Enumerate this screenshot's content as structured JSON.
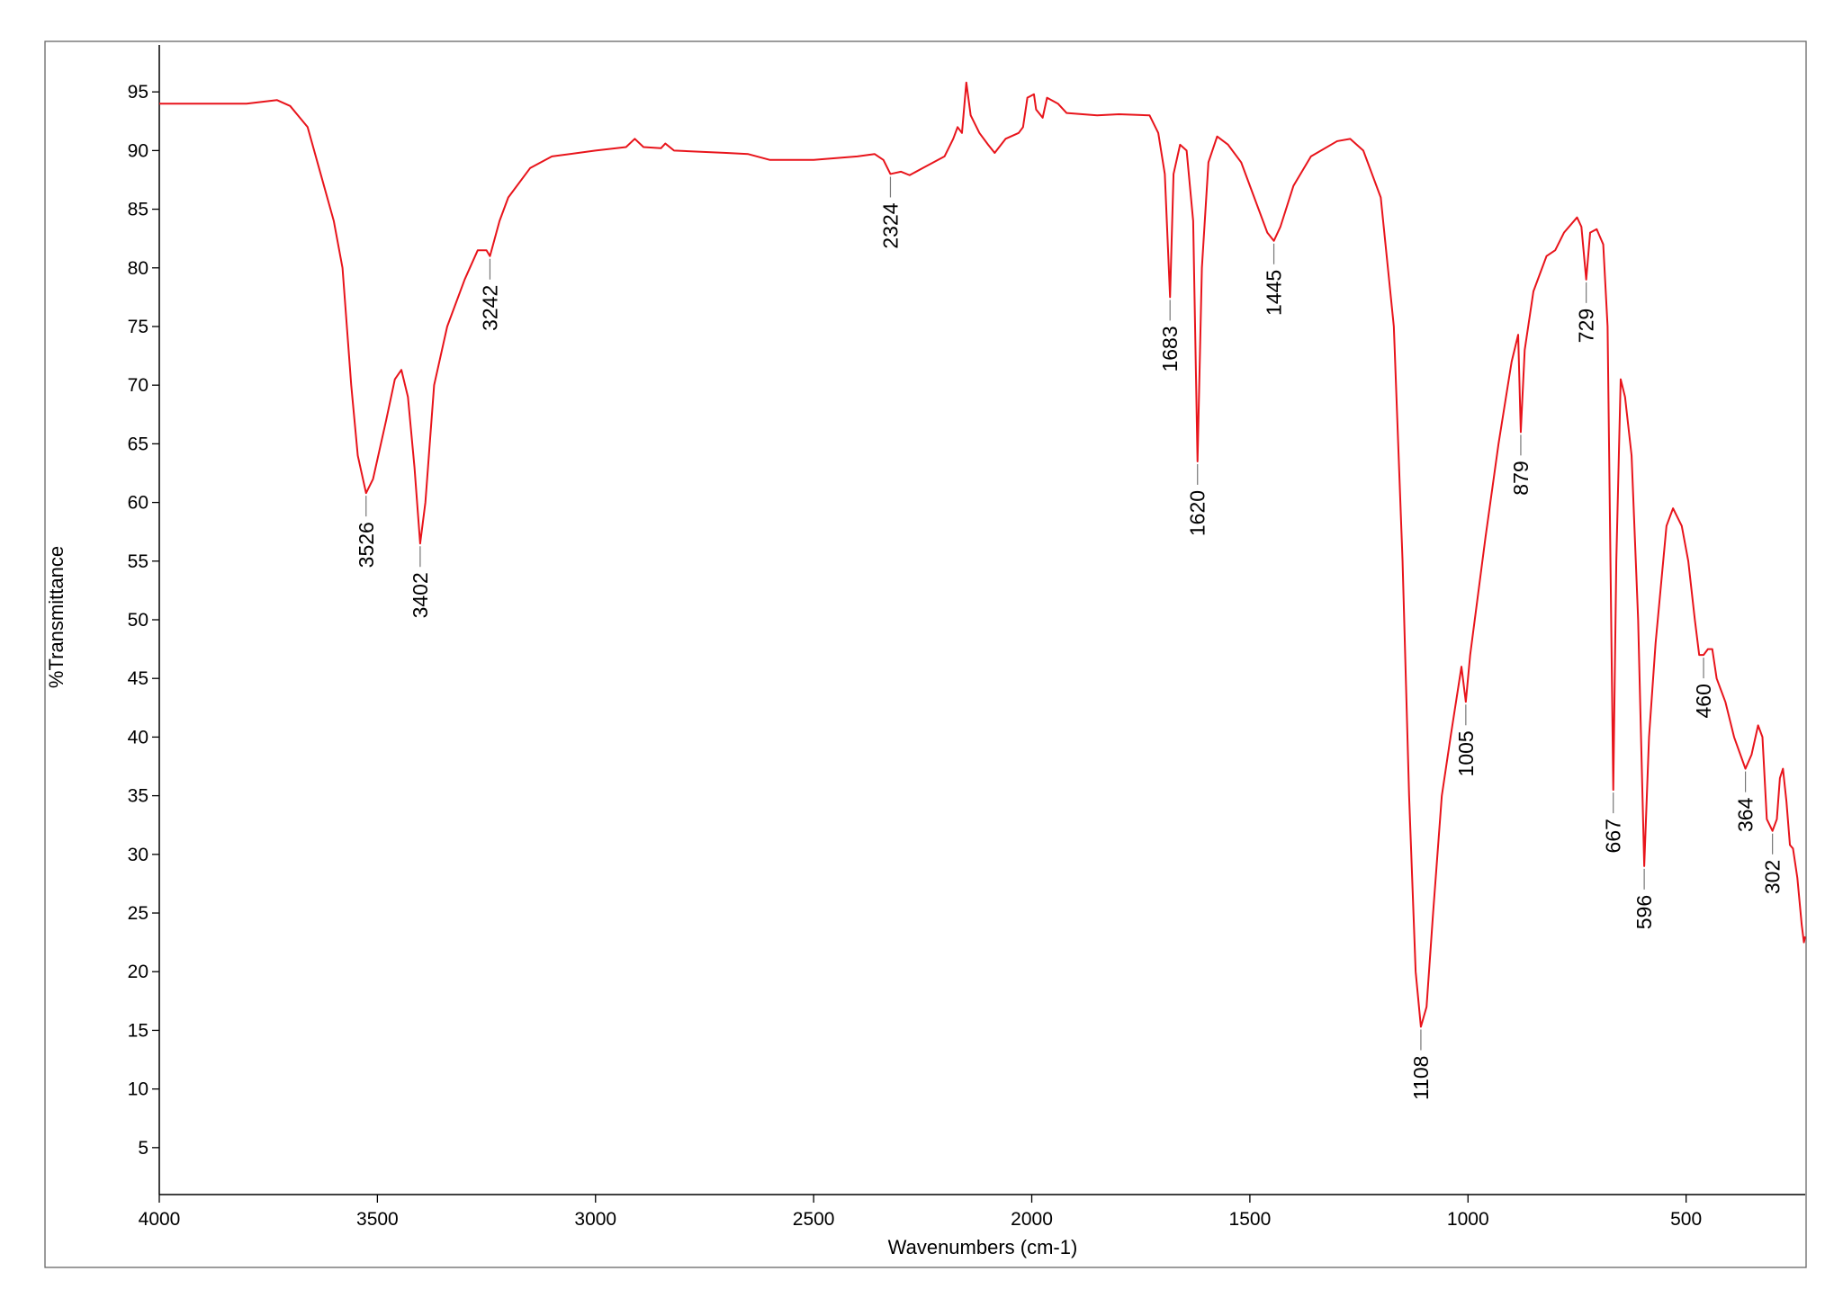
{
  "chart_data": {
    "type": "line",
    "x_label": "Wavenumbers (cm-1)",
    "y_label": "%Transmittance",
    "color": "#e8141b",
    "xlim": [
      4000,
      227
    ],
    "ylim": [
      1,
      99
    ],
    "xticks": [
      4000,
      3500,
      3000,
      2500,
      2000,
      1500,
      1000,
      500
    ],
    "yticks": [
      5,
      10,
      15,
      20,
      25,
      30,
      35,
      40,
      45,
      50,
      55,
      60,
      65,
      70,
      75,
      80,
      85,
      90,
      95
    ],
    "x": [
      4000,
      3800,
      3730,
      3700,
      3660,
      3630,
      3600,
      3580,
      3560,
      3545,
      3526,
      3510,
      3480,
      3460,
      3445,
      3430,
      3415,
      3402,
      3390,
      3370,
      3340,
      3300,
      3270,
      3250,
      3242,
      3220,
      3200,
      3150,
      3100,
      3000,
      2930,
      2910,
      2890,
      2850,
      2840,
      2820,
      2700,
      2650,
      2600,
      2500,
      2400,
      2360,
      2340,
      2324,
      2300,
      2280,
      2250,
      2200,
      2180,
      2170,
      2160,
      2150,
      2140,
      2120,
      2100,
      2085,
      2060,
      2030,
      2020,
      2010,
      1995,
      1990,
      1975,
      1965,
      1940,
      1920,
      1850,
      1800,
      1730,
      1710,
      1695,
      1683,
      1675,
      1660,
      1645,
      1630,
      1620,
      1610,
      1595,
      1575,
      1550,
      1520,
      1490,
      1460,
      1445,
      1430,
      1400,
      1360,
      1300,
      1270,
      1240,
      1200,
      1170,
      1150,
      1135,
      1120,
      1108,
      1095,
      1080,
      1060,
      1040,
      1015,
      1005,
      995,
      960,
      930,
      900,
      885,
      879,
      870,
      850,
      820,
      800,
      780,
      750,
      740,
      729,
      720,
      705,
      690,
      680,
      667,
      660,
      650,
      640,
      625,
      610,
      596,
      585,
      570,
      545,
      530,
      510,
      495,
      480,
      470,
      460,
      450,
      440,
      430,
      410,
      390,
      364,
      350,
      335,
      325,
      315,
      302,
      292,
      285,
      278,
      270,
      262,
      255,
      245,
      235,
      230,
      227
    ],
    "values": [
      94,
      94,
      94.3,
      93.8,
      92,
      88,
      84,
      80,
      70,
      64,
      60.8,
      62,
      67,
      70.5,
      71.3,
      69,
      63,
      56.5,
      60,
      70,
      75,
      79,
      81.5,
      81.5,
      81,
      84,
      86,
      88.5,
      89.5,
      90,
      90.3,
      91,
      90.3,
      90.2,
      90.6,
      90,
      89.8,
      89.7,
      89.2,
      89.2,
      89.5,
      89.7,
      89.2,
      88,
      88.2,
      87.9,
      88.5,
      89.5,
      91,
      92,
      91.5,
      95.8,
      93,
      91.5,
      90.5,
      89.8,
      91,
      91.5,
      92,
      94.5,
      94.8,
      93.5,
      92.8,
      94.5,
      94,
      93.2,
      93,
      93.1,
      93,
      91.5,
      88,
      77.5,
      88,
      90.5,
      90,
      84,
      63.5,
      80,
      89,
      91.2,
      90.5,
      89,
      86,
      83,
      82.3,
      83.5,
      87,
      89.5,
      90.8,
      91,
      90,
      86,
      75,
      55,
      35,
      20,
      15.3,
      17,
      25,
      35,
      40,
      46,
      43,
      47,
      57,
      65,
      72,
      74.3,
      66,
      73,
      78,
      81,
      81.5,
      83,
      84.3,
      83.5,
      79,
      83,
      83.3,
      82,
      75,
      35.5,
      55,
      70.5,
      69,
      64,
      50,
      29,
      40,
      48,
      58,
      59.5,
      58,
      55,
      50,
      47,
      47,
      47.5,
      47.5,
      45,
      43,
      40,
      37.3,
      38.5,
      41,
      40,
      33,
      32,
      33,
      36.5,
      37.3,
      34.5,
      30.8,
      30.5,
      28,
      24,
      22.5,
      23
    ],
    "peaks": [
      3526,
      3402,
      3242,
      2324,
      1683,
      1620,
      1445,
      1108,
      1005,
      879,
      729,
      667,
      596,
      460,
      364,
      302
    ]
  }
}
